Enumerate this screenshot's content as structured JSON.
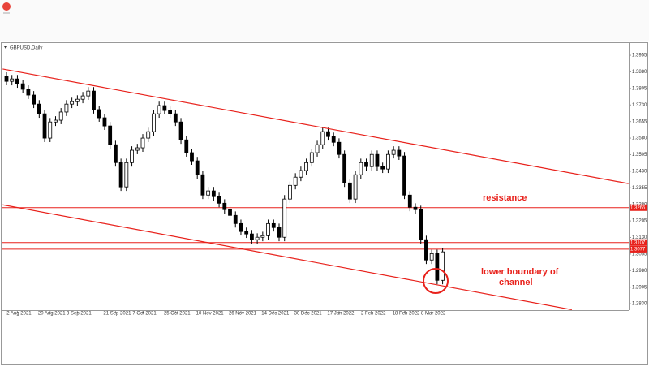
{
  "chart_data": {
    "type": "candlestick",
    "title": "GBPUSD,Daily",
    "categories": [
      null,
      null,
      "2 Aug 2021",
      null,
      null,
      null,
      null,
      null,
      "20 Aug 2021",
      null,
      null,
      null,
      null,
      "3 Sep 2021",
      null,
      null,
      null,
      null,
      null,
      null,
      "21 Sep 2021",
      null,
      null,
      null,
      null,
      "7 Oct 2021",
      null,
      null,
      null,
      null,
      null,
      "25 Oct 2021",
      null,
      null,
      null,
      null,
      null,
      "10 Nov 2021",
      null,
      null,
      null,
      null,
      null,
      "26 Nov 2021",
      null,
      null,
      null,
      null,
      null,
      "14 Dec 2021",
      null,
      null,
      null,
      null,
      null,
      "30 Dec 2021",
      null,
      null,
      null,
      null,
      null,
      "17 Jan 2022",
      null,
      null,
      null,
      null,
      null,
      "2 Feb 2022",
      null,
      null,
      null,
      null,
      null,
      "18 Feb 2022",
      null,
      null,
      null,
      null,
      "8 Mar 2022",
      null,
      null
    ],
    "open": [
      1.386,
      1.3837,
      1.3848,
      1.3826,
      1.3801,
      1.3775,
      1.3734,
      1.369,
      1.358,
      1.3653,
      1.3661,
      1.3698,
      1.3734,
      1.3745,
      1.3756,
      1.3771,
      1.3793,
      1.3709,
      1.3672,
      1.3635,
      1.355,
      1.3469,
      1.3359,
      1.3469,
      1.3525,
      1.3536,
      1.358,
      1.3609,
      1.369,
      1.3727,
      1.3705,
      1.369,
      1.3653,
      1.3572,
      1.3514,
      1.3477,
      1.3414,
      1.3322,
      1.3341,
      1.3315,
      1.3285,
      1.3256,
      1.323,
      1.3193,
      1.3157,
      1.3146,
      1.312,
      1.3131,
      1.3138,
      1.3193,
      1.3175,
      1.3131,
      1.3304,
      1.3366,
      1.3403,
      1.3433,
      1.3469,
      1.3514,
      1.355,
      1.3609,
      1.3587,
      1.3561,
      1.3506,
      1.3377,
      1.3304,
      1.3414,
      1.3469,
      1.3451,
      1.3506,
      1.3451,
      1.344,
      1.3506,
      1.3525,
      1.3499,
      1.3322,
      1.3267,
      1.3256,
      1.312,
      1.3028,
      1.3057,
      1.2936
    ],
    "high": [
      1.3878,
      1.3866,
      1.3866,
      1.3844,
      1.3819,
      1.3793,
      1.3752,
      1.3708,
      1.3671,
      1.3679,
      1.3716,
      1.3752,
      1.3763,
      1.3774,
      1.3789,
      1.3811,
      1.3811,
      1.3727,
      1.369,
      1.3653,
      1.3568,
      1.3487,
      1.3487,
      1.3543,
      1.3554,
      1.3598,
      1.3627,
      1.3708,
      1.3745,
      1.3745,
      1.3723,
      1.3708,
      1.3671,
      1.359,
      1.3532,
      1.3495,
      1.3432,
      1.3359,
      1.3359,
      1.3333,
      1.3303,
      1.3274,
      1.3248,
      1.3211,
      1.3175,
      1.3164,
      1.3149,
      1.3156,
      1.3211,
      1.3211,
      1.3193,
      1.3322,
      1.3384,
      1.3421,
      1.3451,
      1.3487,
      1.3532,
      1.3568,
      1.3627,
      1.3627,
      1.3605,
      1.3579,
      1.3524,
      1.3395,
      1.3432,
      1.3487,
      1.3487,
      1.3524,
      1.3524,
      1.3469,
      1.3524,
      1.3543,
      1.3543,
      1.3517,
      1.334,
      1.3285,
      1.3274,
      1.3138,
      1.3075,
      1.3075,
      1.3083
    ],
    "low": [
      1.3819,
      1.3819,
      1.3808,
      1.3783,
      1.3757,
      1.3716,
      1.3672,
      1.3562,
      1.3562,
      1.3635,
      1.3643,
      1.368,
      1.3716,
      1.3727,
      1.3738,
      1.3753,
      1.3691,
      1.3654,
      1.3617,
      1.3532,
      1.3451,
      1.3341,
      1.3341,
      1.3451,
      1.3507,
      1.3518,
      1.3562,
      1.3591,
      1.3672,
      1.3687,
      1.3672,
      1.3635,
      1.3554,
      1.3496,
      1.3459,
      1.3396,
      1.3304,
      1.3304,
      1.3297,
      1.3267,
      1.3238,
      1.3212,
      1.3175,
      1.3139,
      1.3128,
      1.3102,
      1.3102,
      1.3113,
      1.312,
      1.3157,
      1.3113,
      1.3113,
      1.3286,
      1.3348,
      1.3385,
      1.3415,
      1.3451,
      1.3496,
      1.3532,
      1.3569,
      1.3543,
      1.3488,
      1.3359,
      1.3286,
      1.3286,
      1.3396,
      1.3433,
      1.3433,
      1.3433,
      1.3422,
      1.3422,
      1.3488,
      1.3481,
      1.3304,
      1.3249,
      1.3238,
      1.3102,
      1.301,
      1.301,
      1.2918,
      1.2918
    ],
    "close": [
      1.3837,
      1.3848,
      1.3826,
      1.3801,
      1.3775,
      1.3734,
      1.369,
      1.358,
      1.3653,
      1.3661,
      1.3698,
      1.3734,
      1.3745,
      1.3756,
      1.3771,
      1.3793,
      1.3709,
      1.3672,
      1.3635,
      1.355,
      1.3469,
      1.3359,
      1.3469,
      1.3525,
      1.3536,
      1.358,
      1.3609,
      1.369,
      1.3727,
      1.3705,
      1.369,
      1.3653,
      1.3572,
      1.3514,
      1.3477,
      1.3414,
      1.3322,
      1.3341,
      1.3315,
      1.3285,
      1.3256,
      1.323,
      1.3193,
      1.3157,
      1.3146,
      1.312,
      1.3131,
      1.3138,
      1.3193,
      1.3175,
      1.3131,
      1.3304,
      1.3366,
      1.3403,
      1.3433,
      1.3469,
      1.3514,
      1.355,
      1.3609,
      1.3587,
      1.3561,
      1.3506,
      1.3377,
      1.3304,
      1.3414,
      1.3469,
      1.3451,
      1.3506,
      1.3451,
      1.344,
      1.3506,
      1.3525,
      1.3499,
      1.3322,
      1.3267,
      1.3256,
      1.312,
      1.3028,
      1.3057,
      1.2936,
      1.3065
    ],
    "ylim": [
      1.2801,
      1.4003
    ],
    "yticks": [
      {
        "value": 1.283,
        "label": "1.2830"
      },
      1.2905,
      {
        "value": 1.298,
        "label": "1.2980"
      },
      1.3055,
      {
        "value": 1.313,
        "label": "1.3130"
      },
      1.3205,
      {
        "value": 1.328,
        "label": "1.3280"
      },
      1.3355,
      {
        "value": 1.343,
        "label": "1.3430"
      },
      1.3505,
      {
        "value": 1.358,
        "label": "1.3580"
      },
      1.3655,
      {
        "value": 1.373,
        "label": "1.3730"
      },
      1.3805,
      {
        "value": 1.388,
        "label": "1.3880"
      },
      1.3955
    ],
    "levels": [
      1.3265,
      1.3107,
      1.3077
    ],
    "channels": [
      {
        "x": [
          -0.7,
          114.1
        ],
        "y": [
          1.3893,
          1.3374
        ]
      },
      {
        "x": [
          -0.7,
          103.7
        ],
        "y": [
          1.3278,
          1.2803
        ]
      }
    ],
    "annotations": [
      "resistance",
      "lower boundary of",
      "channel"
    ],
    "line_color": "#e8211b",
    "up_color": "#ffffff",
    "down_color": "#000000"
  }
}
